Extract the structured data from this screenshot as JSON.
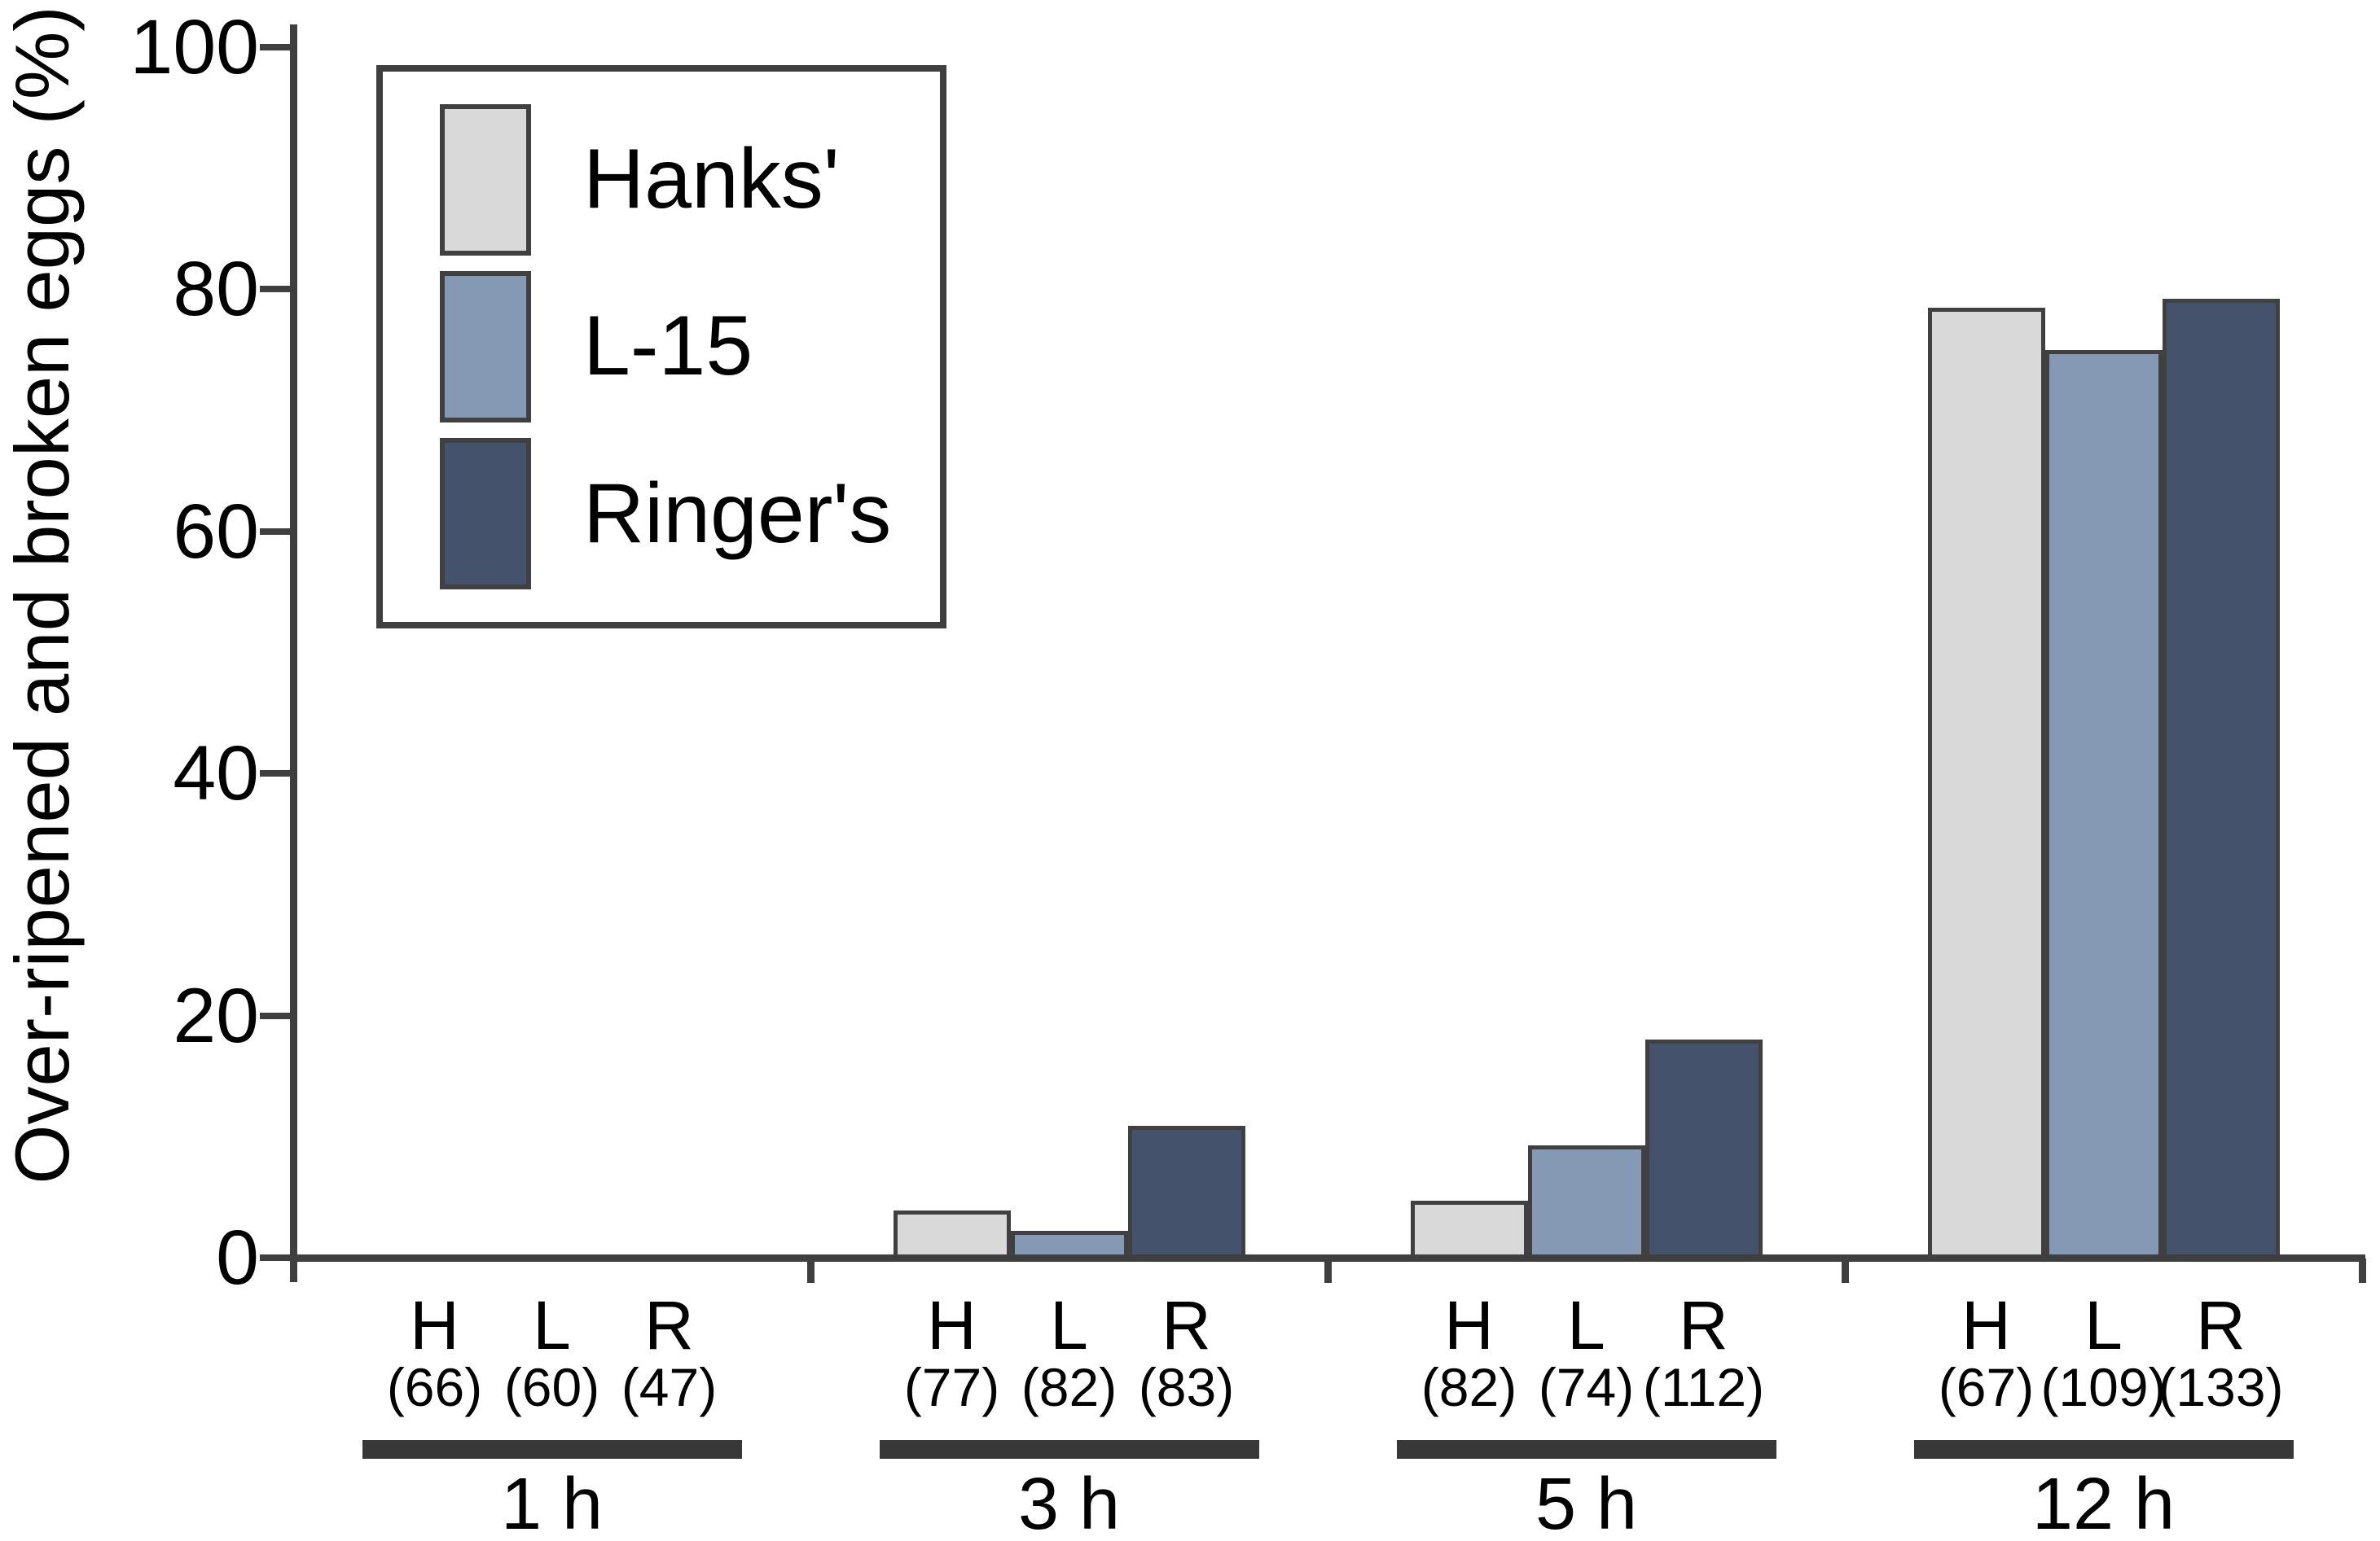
{
  "figure": {
    "background_color": "#ffffff",
    "axis_color": "#3f3f3f",
    "underline_color": "#383838",
    "bar_border_color": "#404040",
    "text_color": "#000000"
  },
  "y_axis": {
    "title": "Over-ripened and broken eggs (%)",
    "tick_labels": [
      "0",
      "20",
      "40",
      "60",
      "80",
      "100"
    ],
    "tick_values": [
      0,
      20,
      40,
      60,
      80,
      100
    ]
  },
  "legend": {
    "items": [
      {
        "label": "Hanks'",
        "color": "#d9d9d9",
        "icon": "swatch-light-gray"
      },
      {
        "label": "L-15",
        "color": "#8699b4",
        "icon": "swatch-blue-gray"
      },
      {
        "label": "Ringer's",
        "color": "#45526b",
        "icon": "swatch-dark-navy"
      }
    ]
  },
  "chart_data": {
    "type": "bar",
    "title": "",
    "xlabel": "",
    "ylabel": "Over-ripened and broken eggs (%)",
    "ylim": [
      0,
      100
    ],
    "grid": false,
    "legend_position": "upper-left",
    "categories": [
      "1 h",
      "3 h",
      "5 h",
      "12 h"
    ],
    "bar_letters": [
      "H",
      "L",
      "R"
    ],
    "series": [
      {
        "name": "Hanks'",
        "letter": "H",
        "color": "#d9d9d9",
        "values": [
          0,
          3.9,
          4.7,
          78.5
        ],
        "n_counts": [
          "(66)",
          "(77)",
          "(82)",
          "(67)"
        ]
      },
      {
        "name": "L-15",
        "letter": "L",
        "color": "#8699b4",
        "values": [
          0,
          2.2,
          9.3,
          75
        ],
        "n_counts": [
          "(60)",
          "(82)",
          "(74)",
          "(109)"
        ]
      },
      {
        "name": "Ringer's",
        "letter": "R",
        "color": "#45526b",
        "values": [
          0,
          10.9,
          18,
          79.2
        ],
        "n_counts": [
          "(47)",
          "(83)",
          "(112)",
          "(133)"
        ]
      }
    ]
  }
}
